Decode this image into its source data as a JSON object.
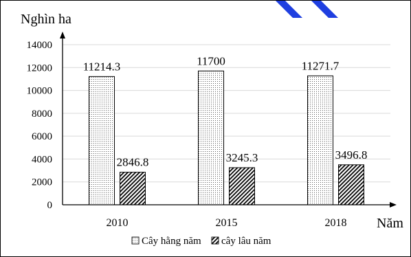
{
  "chart_data": {
    "type": "bar",
    "title": "",
    "ylabel": "Nghìn ha",
    "xlabel": "Năm",
    "categories": [
      "2010",
      "2015",
      "2018"
    ],
    "series": [
      {
        "name": "Cây hằng năm",
        "values": [
          11214.3,
          11700,
          11271.7
        ],
        "labels": [
          "11214.3",
          "11700",
          "11271.7"
        ],
        "pattern": "dots"
      },
      {
        "name": "cây lâu năm",
        "values": [
          2846.8,
          3245.3,
          3496.8
        ],
        "labels": [
          "2846.8",
          "3245.3",
          "3496.8"
        ],
        "pattern": "diagonal-hatch"
      }
    ],
    "ylim": [
      0,
      14000
    ],
    "yticks": [
      0,
      2000,
      4000,
      6000,
      8000,
      10000,
      12000,
      14000
    ],
    "grid": true,
    "legend": "bottom",
    "colors": {
      "bar_stroke": "#000000",
      "gridline": "#d9d9d9",
      "decor_blue": "#1f3fe0"
    }
  }
}
